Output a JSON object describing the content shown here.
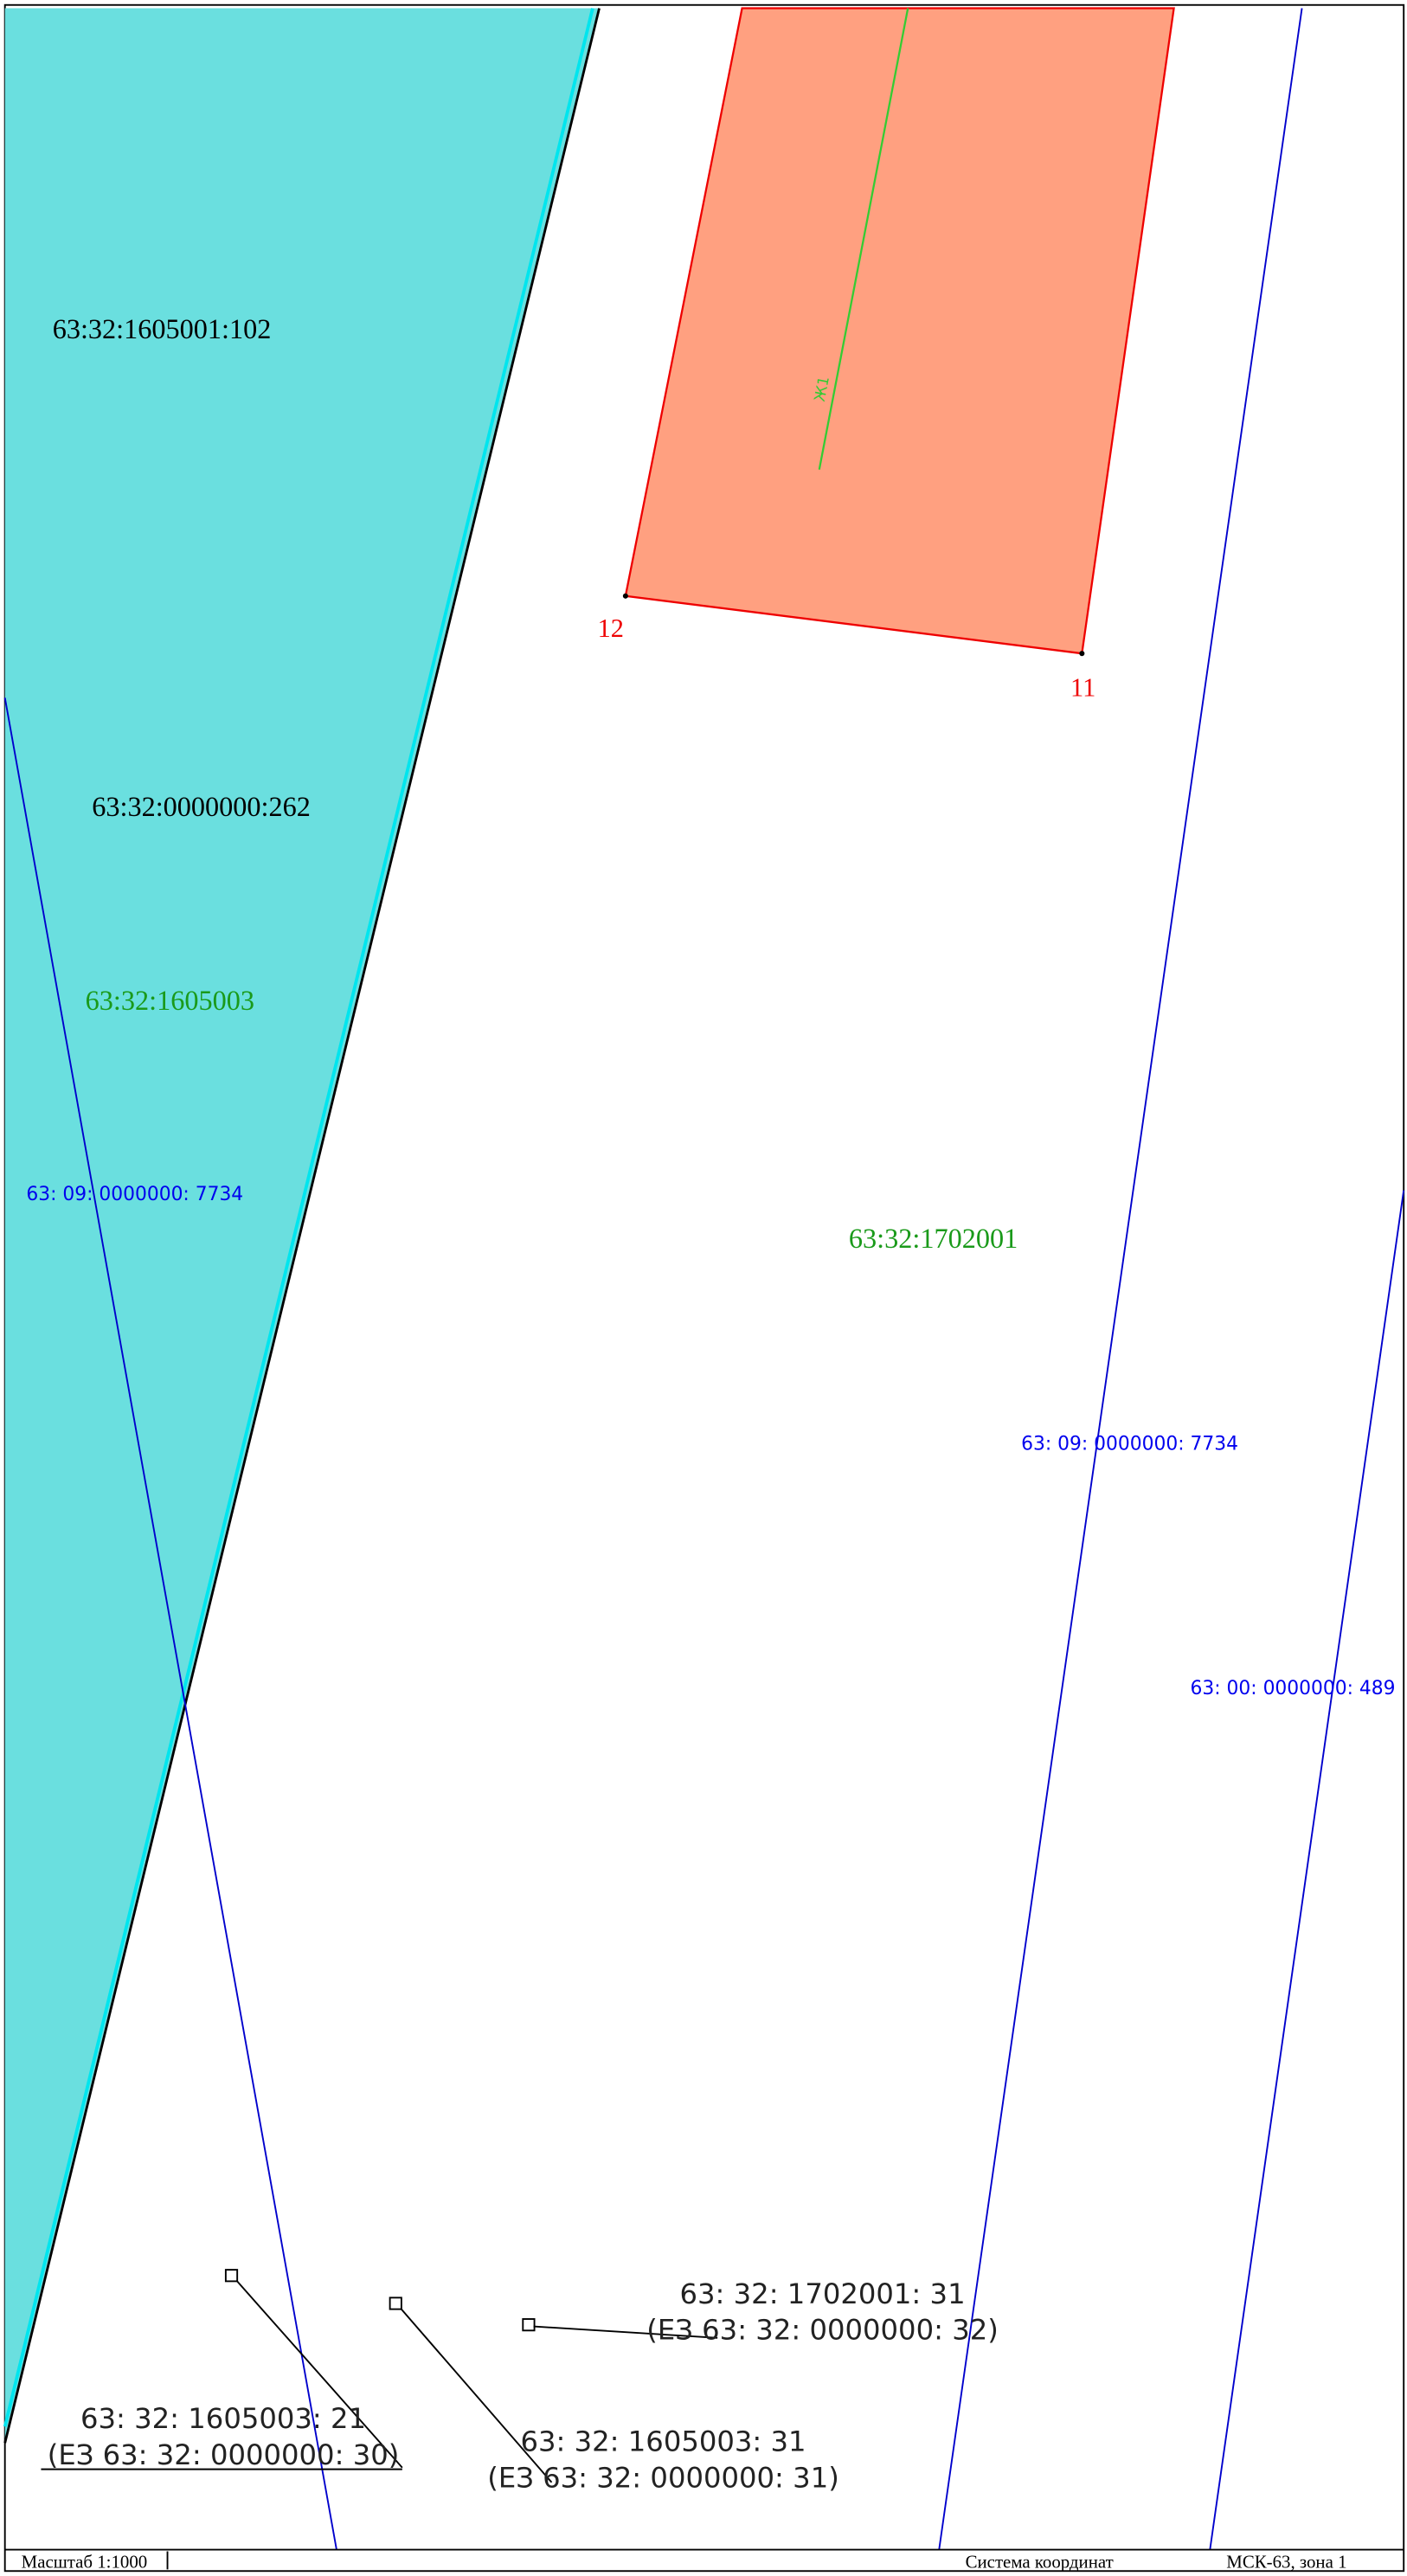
{
  "parcels": [
    "63:32:1605001:102",
    "63:32:0000000:262"
  ],
  "quarters": [
    "63:32:1605003",
    "63:32:1702001"
  ],
  "boundaries": [
    "63: 09: 0000000: 7734",
    "63: 09: 0000000: 7734",
    "63: 00: 0000000: 489"
  ],
  "points": [
    "12",
    "11"
  ],
  "zone_label": "Ж1",
  "callouts": [
    {
      "number": "63: 32: 1702001: 31",
      "parent": "(ЕЗ 63: 32: 0000000: 32)"
    },
    {
      "number": "63: 32: 1605003: 21",
      "parent": "(ЕЗ 63: 32: 0000000: 30)"
    },
    {
      "number": "63: 32: 1605003: 31",
      "parent": "(ЕЗ 63: 32: 0000000: 31)"
    }
  ],
  "footer": {
    "scale": "Масштаб 1:1000",
    "system_label": "Система координат",
    "system": "МСК-63, зона 1"
  }
}
